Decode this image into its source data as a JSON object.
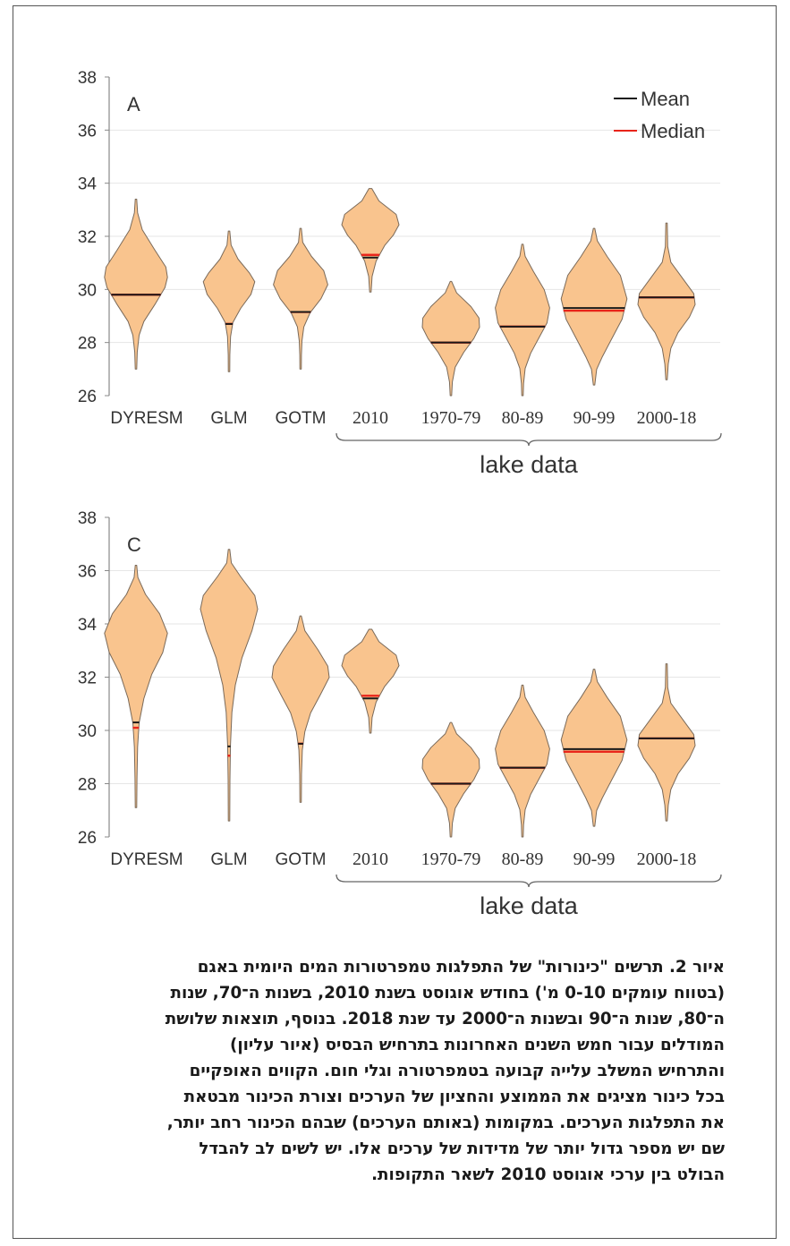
{
  "colors": {
    "violin_fill": "#f9c48e",
    "violin_stroke": "#7a6a5a",
    "mean_line": "#1a1a1a",
    "median_line": "#e8241a",
    "axis": "#888888",
    "grid": "#e6e6e6",
    "text": "#333333"
  },
  "chart_data": [
    {
      "type": "violin",
      "panel_label": "A",
      "ylim": [
        26,
        38
      ],
      "yticks": [
        "26",
        "28",
        "30",
        "32",
        "34",
        "36",
        "38"
      ],
      "legend": {
        "mean": "Mean",
        "median": "Median",
        "position": "top-right"
      },
      "categories": [
        "DYRESM",
        "GLM",
        "GOTM",
        "2010",
        "1970-79",
        "80-89",
        "90-99",
        "2000-18"
      ],
      "group_label": "lake data",
      "group_categories": [
        "2010",
        "1970-79",
        "80-89",
        "90-99",
        "2000-18"
      ],
      "violins": [
        {
          "min": 27.0,
          "max": 33.4,
          "mean": 29.8,
          "median": 29.8,
          "half_width": 0.44,
          "shape": [
            [
              0,
              0.02
            ],
            [
              0.08,
              0.05
            ],
            [
              0.18,
              0.2
            ],
            [
              0.3,
              0.6
            ],
            [
              0.4,
              0.95
            ],
            [
              0.46,
              1
            ],
            [
              0.52,
              0.92
            ],
            [
              0.62,
              0.6
            ],
            [
              0.72,
              0.25
            ],
            [
              0.8,
              0.1
            ],
            [
              0.9,
              0.04
            ],
            [
              1,
              0.02
            ]
          ]
        },
        {
          "min": 26.9,
          "max": 32.2,
          "mean": 28.7,
          "median": 28.7,
          "half_width": 0.36,
          "shape": [
            [
              0,
              0.02
            ],
            [
              0.1,
              0.08
            ],
            [
              0.2,
              0.35
            ],
            [
              0.3,
              0.8
            ],
            [
              0.36,
              1
            ],
            [
              0.45,
              0.85
            ],
            [
              0.55,
              0.45
            ],
            [
              0.65,
              0.15
            ],
            [
              0.75,
              0.06
            ],
            [
              0.88,
              0.03
            ],
            [
              1,
              0.02
            ]
          ]
        },
        {
          "min": 27.0,
          "max": 32.3,
          "mean": 29.15,
          "median": 29.15,
          "half_width": 0.38,
          "shape": [
            [
              0,
              0.02
            ],
            [
              0.1,
              0.08
            ],
            [
              0.2,
              0.4
            ],
            [
              0.3,
              0.85
            ],
            [
              0.4,
              1
            ],
            [
              0.5,
              0.75
            ],
            [
              0.6,
              0.35
            ],
            [
              0.7,
              0.12
            ],
            [
              0.8,
              0.05
            ],
            [
              0.9,
              0.03
            ],
            [
              1,
              0.02
            ]
          ]
        },
        {
          "min": 29.9,
          "max": 33.8,
          "mean": 31.2,
          "median": 31.3,
          "half_width": 0.4,
          "shape": [
            [
              0,
              0.05
            ],
            [
              0.12,
              0.3
            ],
            [
              0.25,
              0.9
            ],
            [
              0.35,
              1
            ],
            [
              0.45,
              0.8
            ],
            [
              0.55,
              0.5
            ],
            [
              0.7,
              0.2
            ],
            [
              0.85,
              0.06
            ],
            [
              1,
              0.02
            ]
          ]
        },
        {
          "min": 26.0,
          "max": 30.3,
          "mean": 28.0,
          "median": 28.0,
          "half_width": 0.4,
          "shape": [
            [
              0,
              0.02
            ],
            [
              0.1,
              0.2
            ],
            [
              0.22,
              0.7
            ],
            [
              0.32,
              0.98
            ],
            [
              0.4,
              1
            ],
            [
              0.5,
              0.8
            ],
            [
              0.62,
              0.45
            ],
            [
              0.75,
              0.15
            ],
            [
              0.88,
              0.05
            ],
            [
              1,
              0.02
            ]
          ]
        },
        {
          "min": 26.0,
          "max": 31.7,
          "mean": 28.6,
          "median": 28.6,
          "half_width": 0.38,
          "shape": [
            [
              0,
              0.02
            ],
            [
              0.08,
              0.1
            ],
            [
              0.18,
              0.4
            ],
            [
              0.3,
              0.8
            ],
            [
              0.42,
              1
            ],
            [
              0.52,
              0.9
            ],
            [
              0.62,
              0.6
            ],
            [
              0.72,
              0.3
            ],
            [
              0.82,
              0.1
            ],
            [
              0.92,
              0.04
            ],
            [
              1,
              0.02
            ]
          ]
        },
        {
          "min": 26.4,
          "max": 32.3,
          "mean": 29.3,
          "median": 29.2,
          "half_width": 0.46,
          "shape": [
            [
              0,
              0.02
            ],
            [
              0.08,
              0.1
            ],
            [
              0.18,
              0.4
            ],
            [
              0.3,
              0.8
            ],
            [
              0.45,
              1
            ],
            [
              0.58,
              0.85
            ],
            [
              0.7,
              0.55
            ],
            [
              0.82,
              0.25
            ],
            [
              0.9,
              0.08
            ],
            [
              1,
              0.02
            ]
          ]
        },
        {
          "min": 26.6,
          "max": 32.5,
          "mean": 29.7,
          "median": 29.7,
          "half_width": 0.4,
          "shape": [
            [
              0,
              0.02
            ],
            [
              0.15,
              0.04
            ],
            [
              0.25,
              0.15
            ],
            [
              0.35,
              0.55
            ],
            [
              0.45,
              0.95
            ],
            [
              0.52,
              1
            ],
            [
              0.6,
              0.8
            ],
            [
              0.7,
              0.4
            ],
            [
              0.8,
              0.15
            ],
            [
              0.9,
              0.06
            ],
            [
              1,
              0.02
            ]
          ]
        }
      ]
    },
    {
      "type": "violin",
      "panel_label": "C",
      "ylim": [
        26,
        38
      ],
      "yticks": [
        "26",
        "28",
        "30",
        "32",
        "34",
        "36",
        "38"
      ],
      "categories": [
        "DYRESM",
        "GLM",
        "GOTM",
        "2010",
        "1970-79",
        "80-89",
        "90-99",
        "2000-18"
      ],
      "group_label": "lake data",
      "group_categories": [
        "2010",
        "1970-79",
        "80-89",
        "90-99",
        "2000-18"
      ],
      "violins": [
        {
          "min": 27.1,
          "max": 36.2,
          "mean": 30.3,
          "median": 30.1,
          "half_width": 0.44,
          "shape": [
            [
              0,
              0.02
            ],
            [
              0.05,
              0.06
            ],
            [
              0.12,
              0.3
            ],
            [
              0.2,
              0.75
            ],
            [
              0.28,
              1
            ],
            [
              0.36,
              0.85
            ],
            [
              0.45,
              0.5
            ],
            [
              0.55,
              0.25
            ],
            [
              0.65,
              0.1
            ],
            [
              0.75,
              0.05
            ],
            [
              0.88,
              0.03
            ],
            [
              1,
              0.015
            ]
          ]
        },
        {
          "min": 26.6,
          "max": 36.8,
          "mean": 29.4,
          "median": 29.05,
          "half_width": 0.4,
          "shape": [
            [
              0,
              0.02
            ],
            [
              0.05,
              0.08
            ],
            [
              0.1,
              0.4
            ],
            [
              0.17,
              0.9
            ],
            [
              0.22,
              1
            ],
            [
              0.3,
              0.8
            ],
            [
              0.4,
              0.45
            ],
            [
              0.5,
              0.22
            ],
            [
              0.6,
              0.1
            ],
            [
              0.72,
              0.05
            ],
            [
              0.85,
              0.03
            ],
            [
              1,
              0.015
            ]
          ]
        },
        {
          "min": 27.3,
          "max": 34.3,
          "mean": 29.5,
          "median": 29.5,
          "half_width": 0.4,
          "shape": [
            [
              0,
              0.02
            ],
            [
              0.08,
              0.15
            ],
            [
              0.18,
              0.6
            ],
            [
              0.27,
              0.95
            ],
            [
              0.33,
              1
            ],
            [
              0.42,
              0.7
            ],
            [
              0.52,
              0.35
            ],
            [
              0.62,
              0.15
            ],
            [
              0.72,
              0.06
            ],
            [
              0.85,
              0.03
            ],
            [
              1,
              0.015
            ]
          ]
        },
        {
          "min": 29.9,
          "max": 33.8,
          "mean": 31.2,
          "median": 31.3,
          "half_width": 0.4,
          "shape": [
            [
              0,
              0.05
            ],
            [
              0.12,
              0.3
            ],
            [
              0.25,
              0.9
            ],
            [
              0.35,
              1
            ],
            [
              0.45,
              0.8
            ],
            [
              0.55,
              0.5
            ],
            [
              0.7,
              0.2
            ],
            [
              0.85,
              0.06
            ],
            [
              1,
              0.02
            ]
          ]
        },
        {
          "min": 26.0,
          "max": 30.3,
          "mean": 28.0,
          "median": 28.0,
          "half_width": 0.4,
          "shape": [
            [
              0,
              0.02
            ],
            [
              0.1,
              0.2
            ],
            [
              0.22,
              0.7
            ],
            [
              0.32,
              0.98
            ],
            [
              0.4,
              1
            ],
            [
              0.5,
              0.8
            ],
            [
              0.62,
              0.45
            ],
            [
              0.75,
              0.15
            ],
            [
              0.88,
              0.05
            ],
            [
              1,
              0.02
            ]
          ]
        },
        {
          "min": 26.0,
          "max": 31.7,
          "mean": 28.6,
          "median": 28.6,
          "half_width": 0.38,
          "shape": [
            [
              0,
              0.02
            ],
            [
              0.08,
              0.1
            ],
            [
              0.18,
              0.4
            ],
            [
              0.3,
              0.8
            ],
            [
              0.42,
              1
            ],
            [
              0.52,
              0.9
            ],
            [
              0.62,
              0.6
            ],
            [
              0.72,
              0.3
            ],
            [
              0.82,
              0.1
            ],
            [
              0.92,
              0.04
            ],
            [
              1,
              0.02
            ]
          ]
        },
        {
          "min": 26.4,
          "max": 32.3,
          "mean": 29.3,
          "median": 29.2,
          "half_width": 0.46,
          "shape": [
            [
              0,
              0.02
            ],
            [
              0.08,
              0.1
            ],
            [
              0.18,
              0.4
            ],
            [
              0.3,
              0.8
            ],
            [
              0.45,
              1
            ],
            [
              0.58,
              0.85
            ],
            [
              0.7,
              0.55
            ],
            [
              0.82,
              0.25
            ],
            [
              0.9,
              0.08
            ],
            [
              1,
              0.02
            ]
          ]
        },
        {
          "min": 26.6,
          "max": 32.5,
          "mean": 29.7,
          "median": 29.7,
          "half_width": 0.4,
          "shape": [
            [
              0,
              0.02
            ],
            [
              0.15,
              0.04
            ],
            [
              0.25,
              0.15
            ],
            [
              0.35,
              0.55
            ],
            [
              0.45,
              0.95
            ],
            [
              0.52,
              1
            ],
            [
              0.6,
              0.8
            ],
            [
              0.7,
              0.4
            ],
            [
              0.8,
              0.15
            ],
            [
              0.9,
              0.06
            ],
            [
              1,
              0.02
            ]
          ]
        }
      ]
    }
  ],
  "caption": [
    "איור 2. תרשים \"כינורות\" של התפלגות טמפרטורות המים היומית באגם",
    "(בטווח עומקים 0-10 מ') בחודש אוגוסט בשנת 2010, בשנות ה־70, שנות",
    "ה־80, שנות ה־90 ובשנות ה־2000 עד שנת 2018. בנוסף, תוצאות שלושת",
    "המודלים עבור חמש השנים האחרונות בתרחיש הבסיס (איור עליון)",
    "והתרחיש המשלב עלייה קבועה בטמפרטורה וגלי חום. הקווים האופקיים",
    "בכל כינור מציגים את הממוצע והחציון של הערכים וצורת הכינור מבטאת",
    "את התפלגות הערכים. במקומות (באותם הערכים) שבהם הכינור רחב יותר,",
    "שם יש מספר גדול יותר של מדידות של ערכים אלו. יש לשים לב להבדל",
    "הבולט בין ערכי אוגוסט 2010 לשאר התקופות."
  ]
}
